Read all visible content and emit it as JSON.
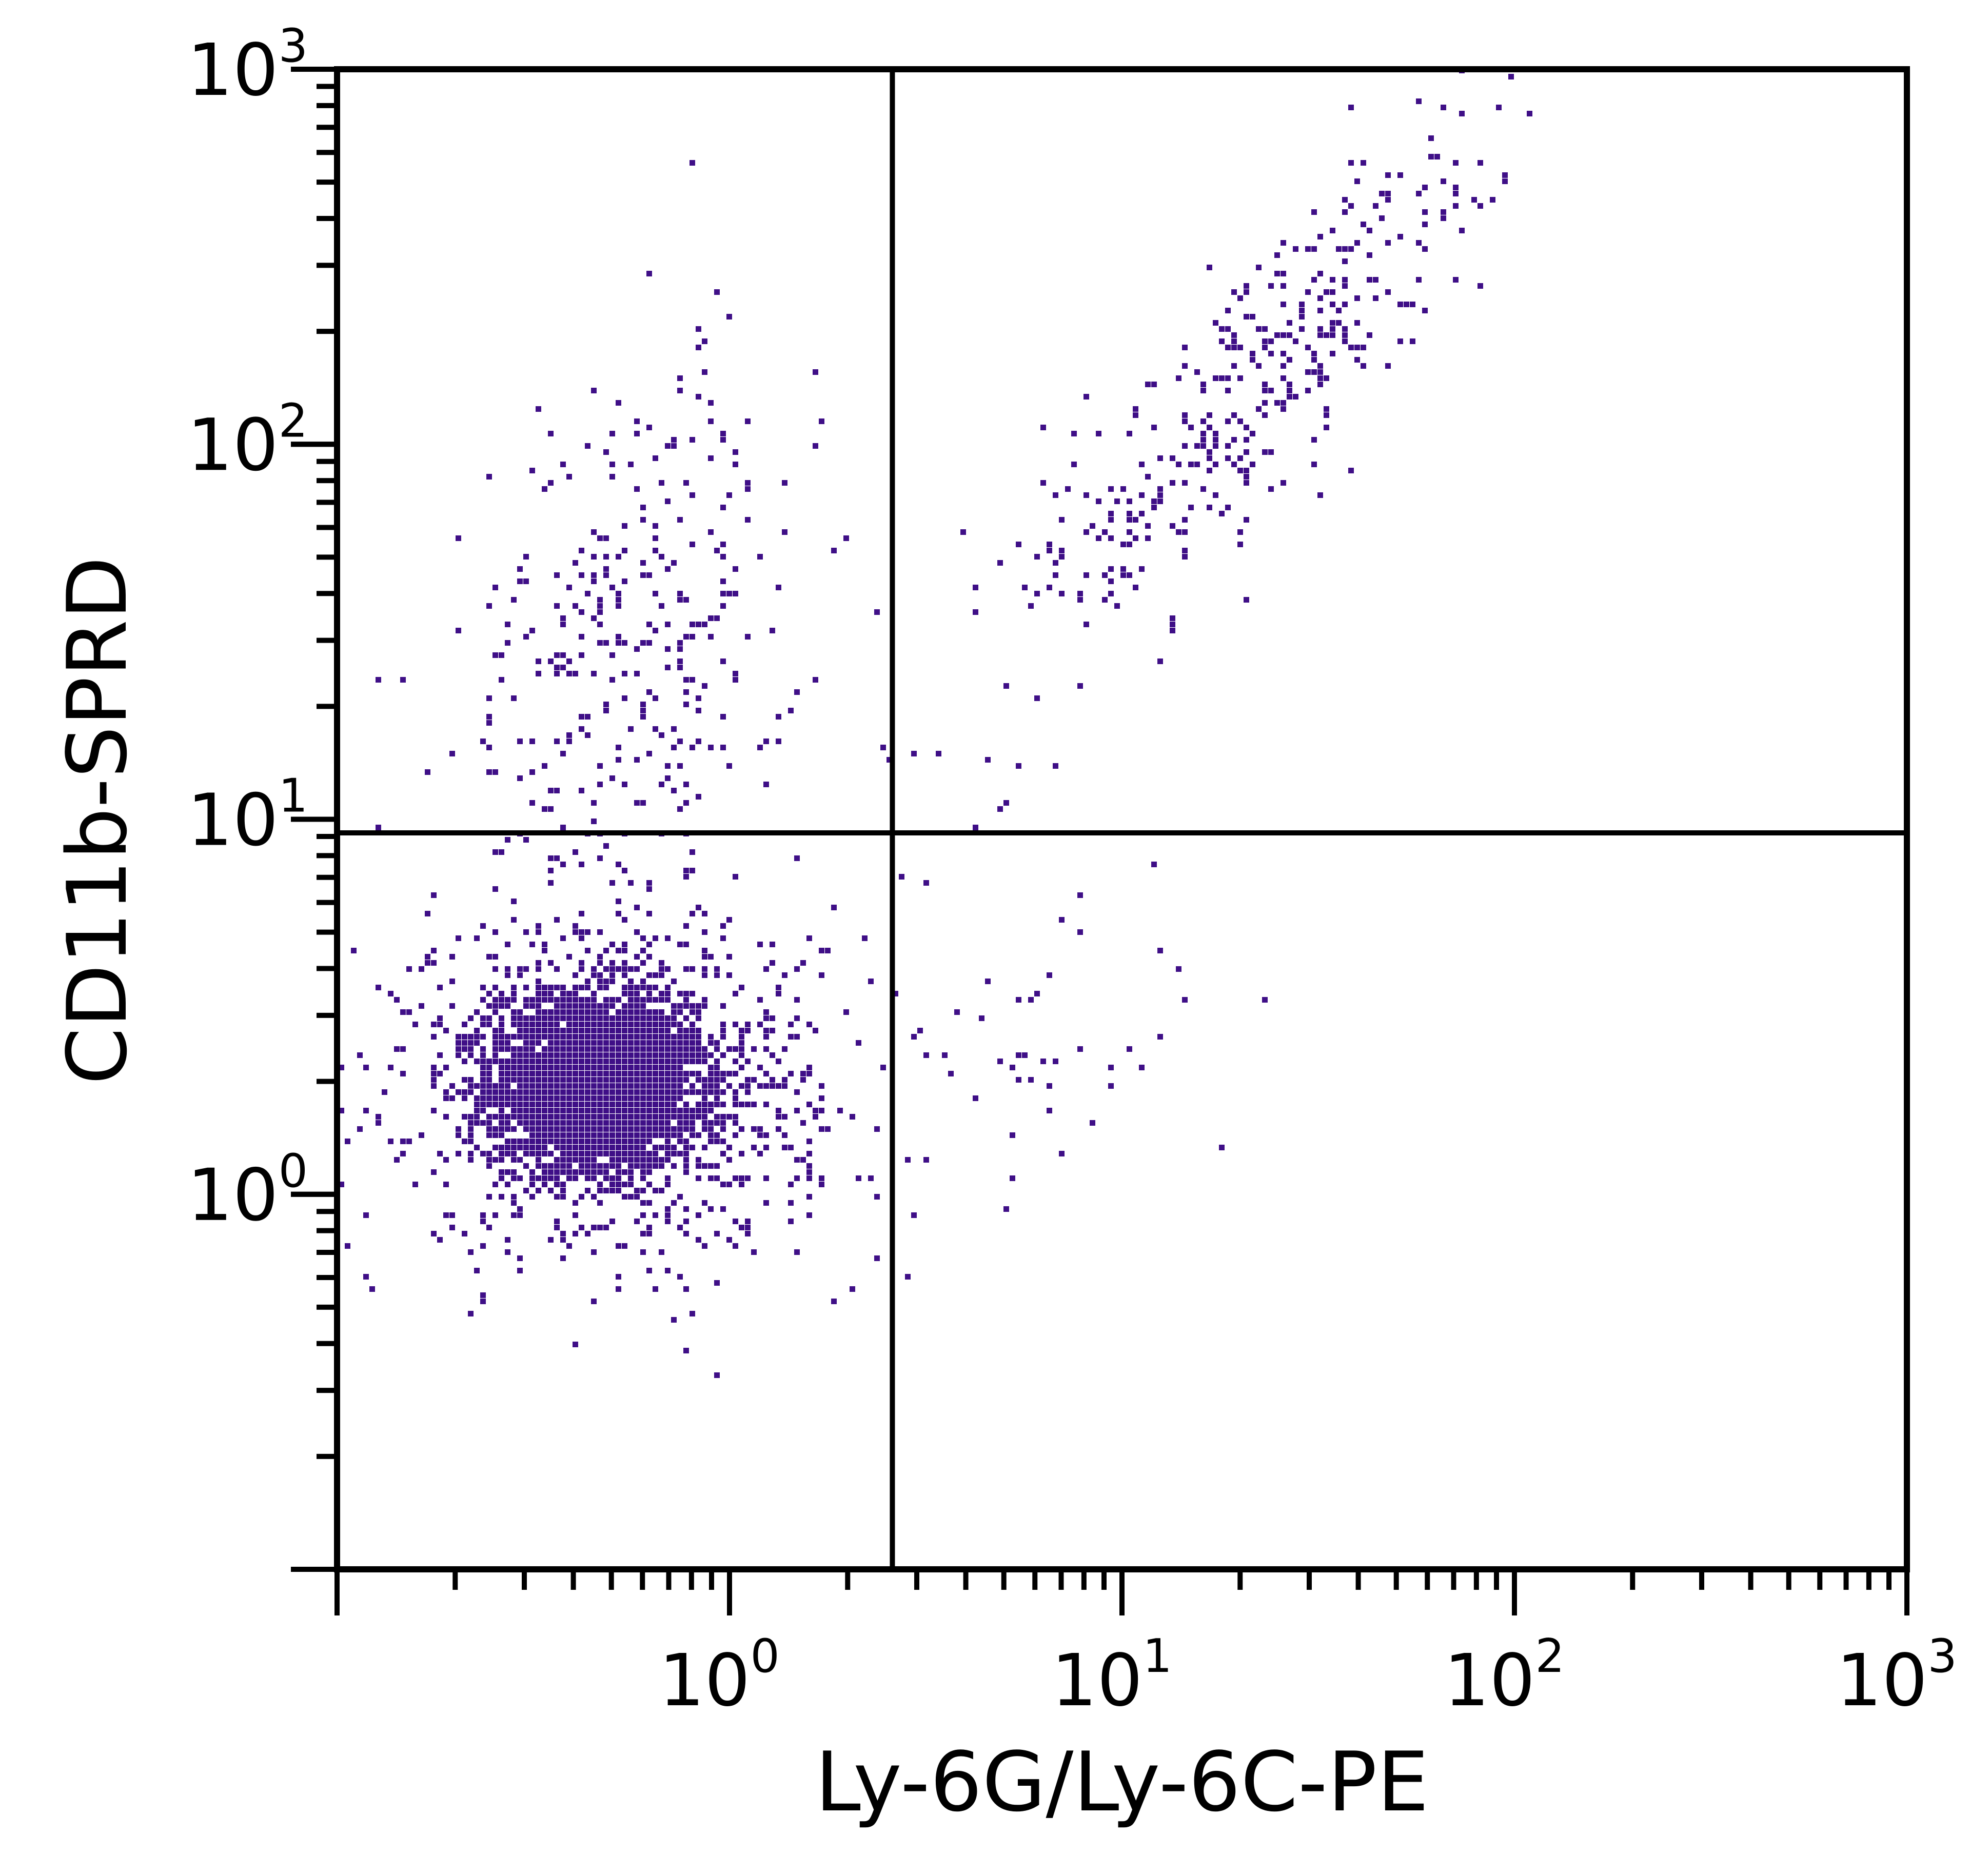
{
  "chart_data": {
    "type": "scatter",
    "xlabel": "Ly-6G/Ly-6C-PE",
    "ylabel": "CD11b-SPRD",
    "x_scale": "log",
    "y_scale": "log",
    "xlim": [
      0.1,
      1000
    ],
    "ylim": [
      0.1,
      1000
    ],
    "x_ticks": [
      {
        "base": "10",
        "exp": "0",
        "value": 1
      },
      {
        "base": "10",
        "exp": "1",
        "value": 10
      },
      {
        "base": "10",
        "exp": "2",
        "value": 100
      },
      {
        "base": "10",
        "exp": "3",
        "value": 1000
      }
    ],
    "y_ticks": [
      {
        "base": "10",
        "exp": "0",
        "value": 1
      },
      {
        "base": "10",
        "exp": "1",
        "value": 10
      },
      {
        "base": "10",
        "exp": "2",
        "value": 100
      },
      {
        "base": "10",
        "exp": "3",
        "value": 1000
      }
    ],
    "quadrant_gates": {
      "x": 2.6,
      "y": 9.2
    },
    "grid": false,
    "point_color": "#3f0f87",
    "populations": [
      {
        "quadrant": "lower-left core",
        "n": 3200,
        "center": [
          0.45,
          2.0
        ],
        "log_sd": [
          0.13,
          0.11
        ],
        "corr": 0
      },
      {
        "quadrant": "lower-left halo",
        "n": 1100,
        "center": [
          0.5,
          2.0
        ],
        "log_sd": [
          0.26,
          0.22
        ],
        "corr": 0
      },
      {
        "quadrant": "upper-left",
        "n": 330,
        "center": [
          0.55,
          30
        ],
        "log_sd": [
          0.22,
          0.38
        ],
        "corr": 0.2
      },
      {
        "quadrant": "upper-right",
        "n": 380,
        "center": [
          22,
          150
        ],
        "log_sd": [
          0.3,
          0.38
        ],
        "corr": 0.85
      },
      {
        "quadrant": "lower-right",
        "n": 60,
        "center": [
          5,
          2.5
        ],
        "log_sd": [
          0.3,
          0.3
        ],
        "corr": 0.3
      }
    ]
  }
}
